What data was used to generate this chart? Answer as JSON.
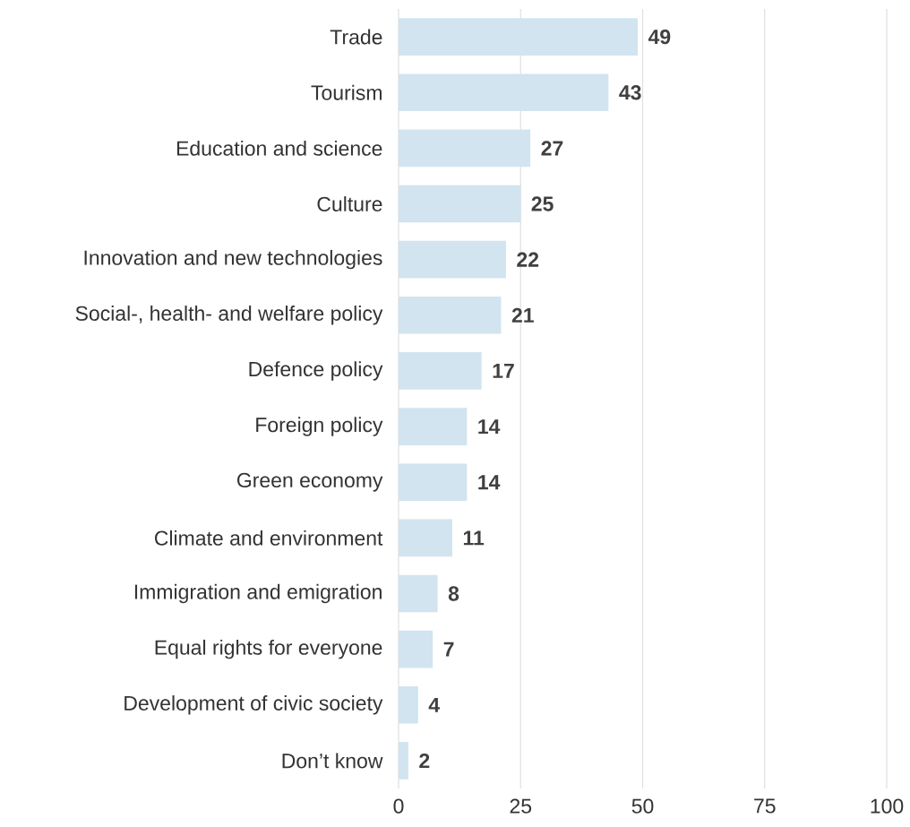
{
  "chart_data": {
    "type": "bar",
    "orientation": "horizontal",
    "categories": [
      "Trade",
      "Tourism",
      "Education and science",
      "Culture",
      "Innovation and new technologies",
      "Social-, health- and welfare policy",
      "Defence policy",
      "Foreign policy",
      "Green economy",
      "Climate and environment",
      "Immigration and emigration",
      "Equal rights for everyone",
      "Development of civic society",
      "Don’t know"
    ],
    "values": [
      49,
      43,
      27,
      25,
      22,
      21,
      17,
      14,
      14,
      11,
      8,
      7,
      4,
      2
    ],
    "color": "#d1e4ef",
    "xlim": [
      0,
      100
    ],
    "xticks": [
      0,
      25,
      50,
      75,
      100
    ],
    "grid": "x",
    "data_labels": true
  }
}
